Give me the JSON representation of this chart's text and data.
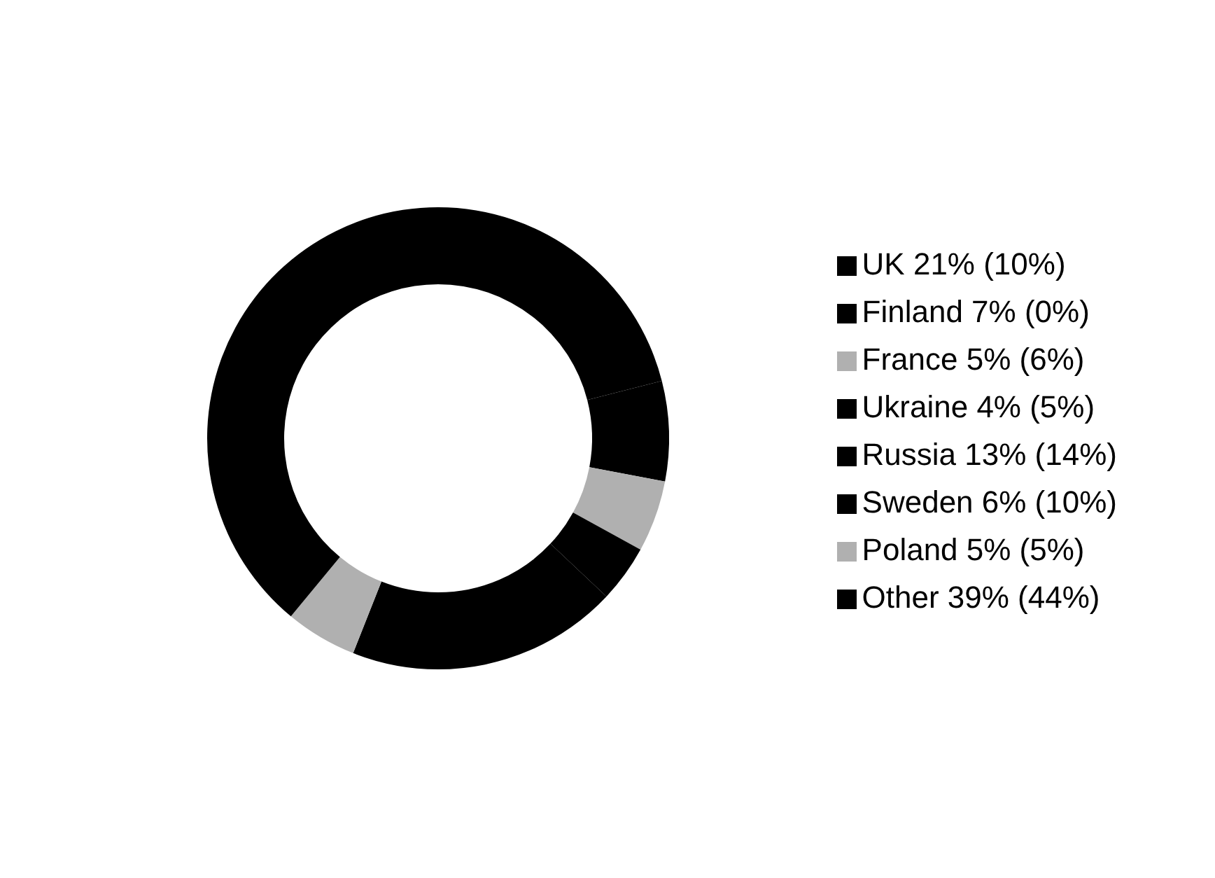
{
  "chart_data": {
    "type": "donut",
    "categories": [
      "UK 21% (10%)",
      "Finland 7% (0%)",
      "France 5% (6%)",
      "Ukraine 4% (5%)",
      "Russia 13% (14%)",
      "Sweden 6% (10%)",
      "Poland 5% (5%)",
      "Other 39% (44%)"
    ],
    "values": [
      21,
      7,
      5,
      4,
      13,
      6,
      5,
      39
    ],
    "colors": [
      "#000000",
      "#000000",
      "#b0b0b0",
      "#000000",
      "#000000",
      "#000000",
      "#b0b0b0",
      "#000000"
    ],
    "legend": "right"
  }
}
